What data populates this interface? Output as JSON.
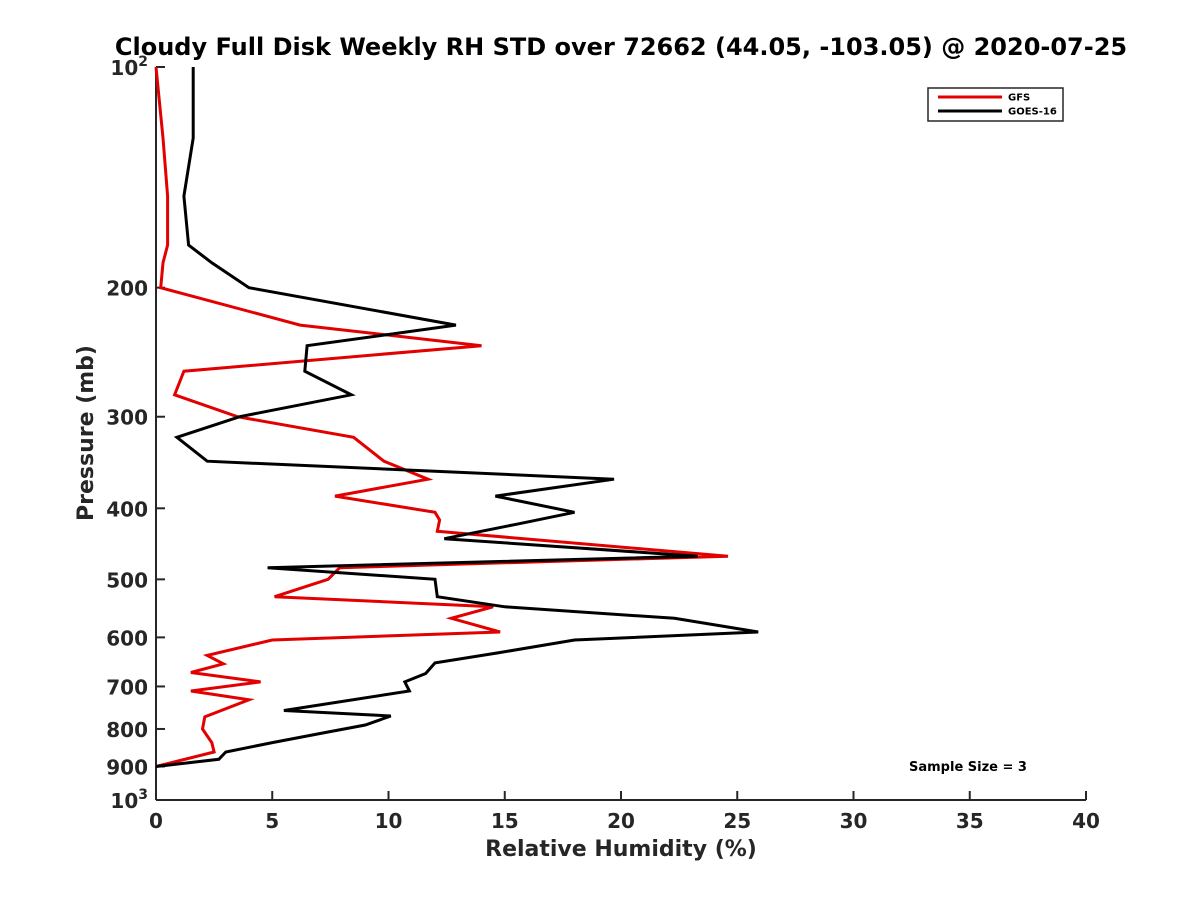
{
  "chart_data": {
    "type": "line",
    "title": "Cloudy Full Disk Weekly RH STD over 72662 (44.05, -103.05) @ 2020-07-25",
    "xlabel": "Relative Humidity (%)",
    "ylabel": "Pressure (mb)",
    "xlim": [
      0,
      40
    ],
    "ylim": [
      100,
      1000
    ],
    "y_scale": "log",
    "y_reversed": true,
    "x_ticks": [
      "0",
      "5",
      "10",
      "15",
      "20",
      "25",
      "30",
      "35",
      "40"
    ],
    "y_ticks": [
      {
        "value": 100,
        "base": "10",
        "exp": "2"
      },
      {
        "value": 200,
        "label": "200"
      },
      {
        "value": 300,
        "label": "300"
      },
      {
        "value": 400,
        "label": "400"
      },
      {
        "value": 500,
        "label": "500"
      },
      {
        "value": 600,
        "label": "600"
      },
      {
        "value": 700,
        "label": "700"
      },
      {
        "value": 800,
        "label": "800"
      },
      {
        "value": 900,
        "label": "900"
      },
      {
        "value": 1000,
        "base": "10",
        "exp": "3"
      }
    ],
    "legend_position": "top-right",
    "annotation": "Sample Size = 3",
    "series": [
      {
        "name": "GFS",
        "color": "#e30000",
        "points": [
          [
            0.0,
            100
          ],
          [
            0.3,
            125
          ],
          [
            0.5,
            150
          ],
          [
            0.5,
            175
          ],
          [
            0.3,
            185
          ],
          [
            0.2,
            200
          ],
          [
            6.2,
            225
          ],
          [
            14.0,
            240
          ],
          [
            1.2,
            260
          ],
          [
            0.8,
            280
          ],
          [
            3.5,
            300
          ],
          [
            8.5,
            320
          ],
          [
            9.8,
            345
          ],
          [
            11.7,
            365
          ],
          [
            7.7,
            385
          ],
          [
            12.0,
            405
          ],
          [
            12.2,
            415
          ],
          [
            12.1,
            430
          ],
          [
            24.6,
            465
          ],
          [
            7.9,
            482
          ],
          [
            7.4,
            500
          ],
          [
            5.1,
            528
          ],
          [
            14.5,
            545
          ],
          [
            12.7,
            565
          ],
          [
            14.8,
            590
          ],
          [
            5.0,
            605
          ],
          [
            2.2,
            635
          ],
          [
            2.9,
            652
          ],
          [
            1.5,
            670
          ],
          [
            4.5,
            690
          ],
          [
            1.5,
            710
          ],
          [
            4.0,
            730
          ],
          [
            2.1,
            770
          ],
          [
            2.0,
            800
          ],
          [
            2.4,
            835
          ],
          [
            2.5,
            860
          ],
          [
            0.0,
            900
          ]
        ]
      },
      {
        "name": "GOES-16",
        "color": "#000000",
        "points": [
          [
            1.6,
            100
          ],
          [
            1.6,
            125
          ],
          [
            1.2,
            150
          ],
          [
            1.4,
            175
          ],
          [
            2.4,
            185
          ],
          [
            4.0,
            200
          ],
          [
            12.9,
            225
          ],
          [
            6.5,
            240
          ],
          [
            6.4,
            260
          ],
          [
            8.4,
            280
          ],
          [
            3.6,
            300
          ],
          [
            0.9,
            320
          ],
          [
            2.2,
            345
          ],
          [
            19.7,
            365
          ],
          [
            14.6,
            385
          ],
          [
            18.0,
            405
          ],
          [
            15.6,
            420
          ],
          [
            12.4,
            440
          ],
          [
            23.3,
            465
          ],
          [
            4.8,
            482
          ],
          [
            12.0,
            500
          ],
          [
            12.1,
            528
          ],
          [
            15.0,
            545
          ],
          [
            22.3,
            565
          ],
          [
            25.9,
            590
          ],
          [
            18.0,
            605
          ],
          [
            14.7,
            630
          ],
          [
            12.0,
            650
          ],
          [
            11.6,
            672
          ],
          [
            10.7,
            690
          ],
          [
            10.9,
            710
          ],
          [
            5.5,
            755
          ],
          [
            10.1,
            768
          ],
          [
            9.0,
            790
          ],
          [
            7.2,
            810
          ],
          [
            5.0,
            835
          ],
          [
            3.0,
            860
          ],
          [
            2.7,
            880
          ],
          [
            0.0,
            900
          ]
        ]
      }
    ]
  }
}
